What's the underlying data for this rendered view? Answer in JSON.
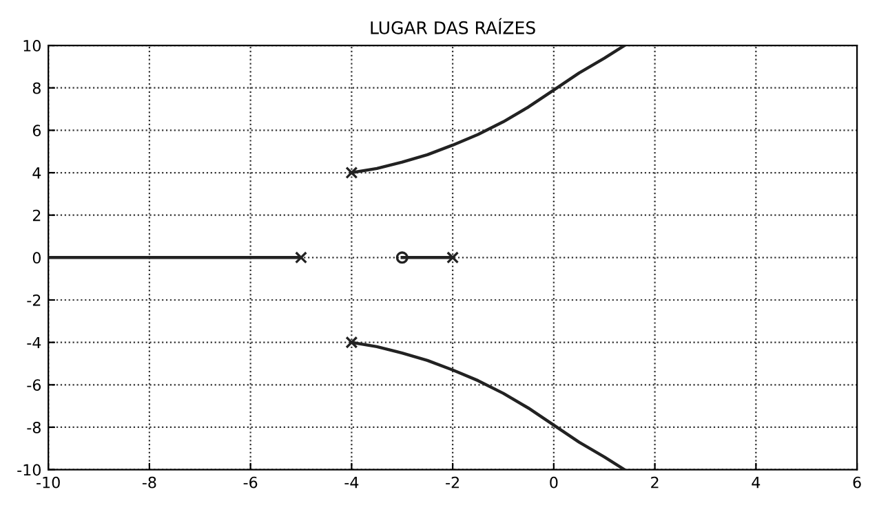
{
  "chart_data": {
    "type": "line",
    "title": "LUGAR DAS RAÍZES",
    "xlim": [
      -10,
      6
    ],
    "ylim": [
      -10,
      10
    ],
    "xticks": [
      -10,
      -8,
      -6,
      -4,
      -2,
      0,
      2,
      4,
      6
    ],
    "yticks": [
      -10,
      -8,
      -6,
      -4,
      -2,
      0,
      2,
      4,
      6,
      8,
      10
    ],
    "grid": true,
    "legend": false,
    "series": [
      {
        "color": "#222222",
        "marker": "none",
        "x": [
          -4,
          -3.5,
          -3,
          -2.5,
          -2,
          -1.5,
          -1,
          -0.5,
          0,
          0.5,
          1,
          1.4
        ],
        "values": [
          4,
          4.2,
          4.5,
          4.85,
          5.3,
          5.8,
          6.4,
          7.1,
          7.9,
          8.7,
          9.4,
          10
        ]
      },
      {
        "color": "#222222",
        "marker": "none",
        "x": [
          -4,
          -3.5,
          -3,
          -2.5,
          -2,
          -1.5,
          -1,
          -0.5,
          0,
          0.5,
          1,
          1.4
        ],
        "values": [
          -4,
          -4.2,
          -4.5,
          -4.85,
          -5.3,
          -5.8,
          -6.4,
          -7.1,
          -7.9,
          -8.7,
          -9.4,
          -10
        ]
      },
      {
        "color": "#222222",
        "marker": "none",
        "x": [
          -10,
          -5
        ],
        "values": [
          0,
          0
        ]
      },
      {
        "color": "#222222",
        "marker": "none",
        "x": [
          -3,
          -2
        ],
        "values": [
          0,
          0
        ]
      },
      {
        "type": "scatter",
        "color": "#222222",
        "marker": "cross",
        "x": [
          -5,
          -2,
          -4,
          -4
        ],
        "values": [
          0,
          0,
          4,
          -4
        ]
      },
      {
        "type": "scatter",
        "color": "#222222",
        "marker": "circle",
        "x": [
          -3
        ],
        "values": [
          0
        ]
      }
    ]
  }
}
